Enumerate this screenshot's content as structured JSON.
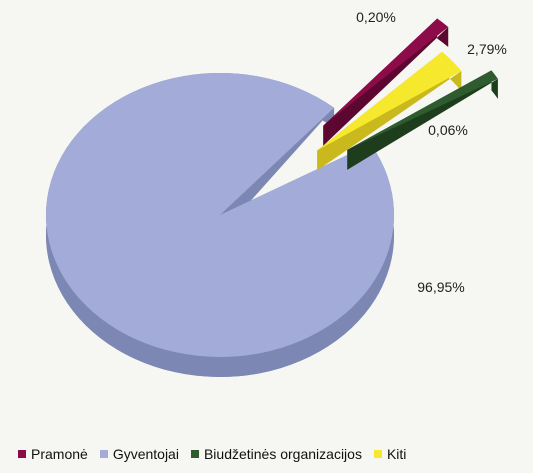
{
  "chart_data": {
    "type": "pie",
    "title": "",
    "categories": [
      "Pramonė",
      "Gyventojai",
      "Biudžetinės organizacijos",
      "Kiti"
    ],
    "values": [
      0.06,
      96.95,
      0.2,
      2.79
    ],
    "value_labels": [
      "0,06%",
      "96,95%",
      "0,20%",
      "2,79%"
    ],
    "colors": [
      "#8e0b4a",
      "#a3acd8",
      "#2f5c2f",
      "#f6e82c"
    ],
    "side_colors": [
      "#5c0730",
      "#7d87b3",
      "#1d3d1d",
      "#c9b91c"
    ],
    "exploded": [
      true,
      false,
      true,
      true
    ],
    "style": "3d",
    "legend_position": "bottom"
  }
}
